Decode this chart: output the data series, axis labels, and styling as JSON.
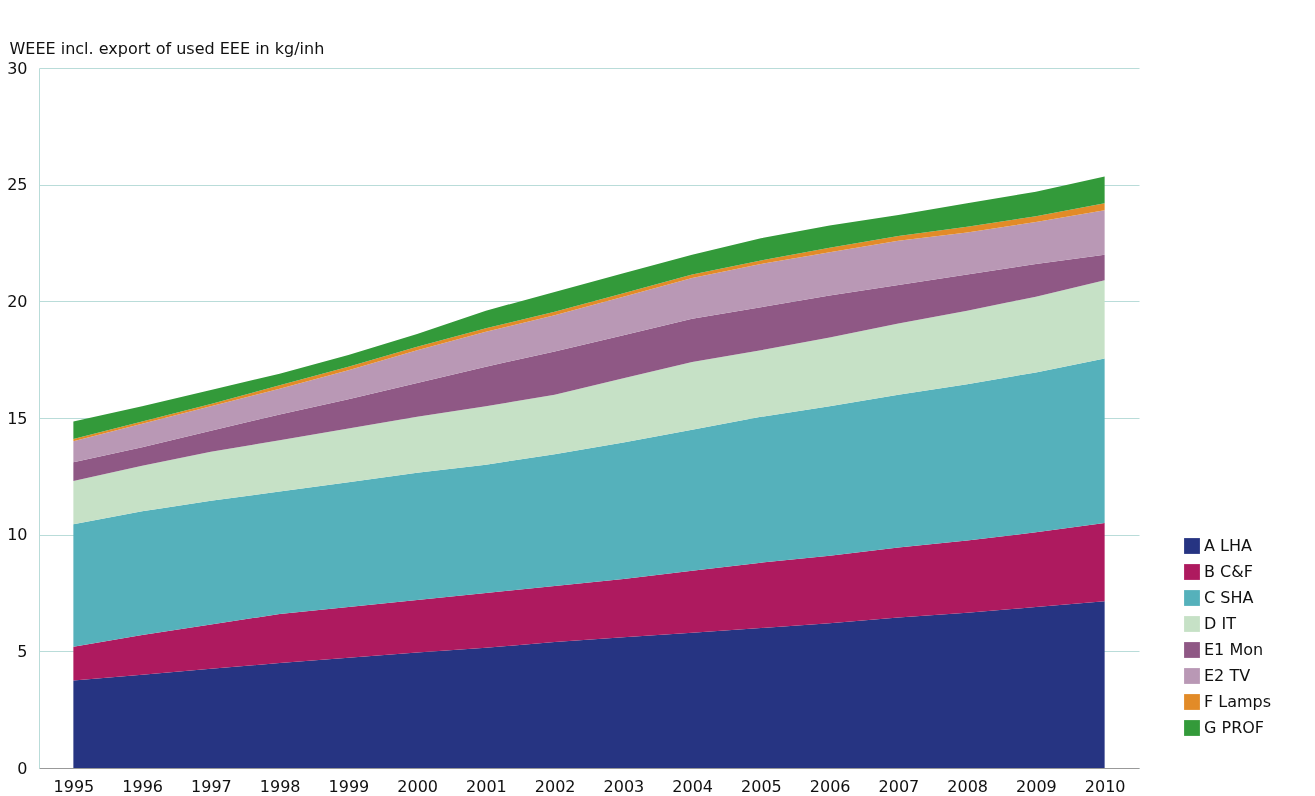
{
  "chart_data": {
    "type": "area",
    "stacked": true,
    "ylabel": "WEEE incl. export of used EEE in kg/inh",
    "categories": [
      "1995",
      "1996",
      "1997",
      "1998",
      "1999",
      "2000",
      "2001",
      "2002",
      "2003",
      "2004",
      "2005",
      "2006",
      "2007",
      "2008",
      "2009",
      "2010"
    ],
    "ylim": [
      0,
      30
    ],
    "yticks": [
      0,
      5,
      10,
      15,
      20,
      25,
      30
    ],
    "grid": "y",
    "legend": "bottom right",
    "series": [
      {
        "name": "A LHA",
        "color": "#263482",
        "values": [
          3.75,
          4.0,
          4.25,
          4.5,
          4.72,
          4.95,
          5.15,
          5.4,
          5.6,
          5.8,
          6.0,
          6.2,
          6.45,
          6.65,
          6.9,
          7.15
        ]
      },
      {
        "name": "B C&F",
        "color": "#ae1a5f",
        "values": [
          1.45,
          1.7,
          1.9,
          2.1,
          2.18,
          2.25,
          2.35,
          2.4,
          2.5,
          2.65,
          2.8,
          2.9,
          3.0,
          3.1,
          3.2,
          3.35
        ]
      },
      {
        "name": "C SHA",
        "color": "#55b1bb",
        "values": [
          5.25,
          5.3,
          5.3,
          5.25,
          5.35,
          5.45,
          5.5,
          5.65,
          5.85,
          6.05,
          6.25,
          6.4,
          6.55,
          6.7,
          6.85,
          7.05
        ]
      },
      {
        "name": "D IT",
        "color": "#c6e1c6",
        "values": [
          1.85,
          1.95,
          2.1,
          2.2,
          2.3,
          2.4,
          2.5,
          2.55,
          2.75,
          2.9,
          2.85,
          2.95,
          3.05,
          3.15,
          3.25,
          3.35
        ]
      },
      {
        "name": "E1 Mon",
        "color": "#8f5885",
        "values": [
          0.8,
          0.8,
          0.9,
          1.1,
          1.25,
          1.45,
          1.7,
          1.85,
          1.85,
          1.85,
          1.85,
          1.8,
          1.65,
          1.55,
          1.4,
          1.1
        ]
      },
      {
        "name": "E2 TV",
        "color": "#b998b5",
        "values": [
          0.9,
          1.0,
          1.05,
          1.1,
          1.25,
          1.4,
          1.5,
          1.55,
          1.65,
          1.75,
          1.85,
          1.85,
          1.9,
          1.8,
          1.8,
          1.9
        ]
      },
      {
        "name": "F Lamps",
        "color": "#e28b28",
        "values": [
          0.1,
          0.1,
          0.1,
          0.15,
          0.15,
          0.15,
          0.15,
          0.15,
          0.15,
          0.15,
          0.15,
          0.2,
          0.2,
          0.25,
          0.25,
          0.3
        ]
      },
      {
        "name": "G PROF",
        "color": "#339a3a",
        "values": [
          0.75,
          0.65,
          0.6,
          0.5,
          0.5,
          0.55,
          0.75,
          0.85,
          0.85,
          0.85,
          0.95,
          0.95,
          0.9,
          1.0,
          1.05,
          1.15
        ]
      }
    ]
  }
}
